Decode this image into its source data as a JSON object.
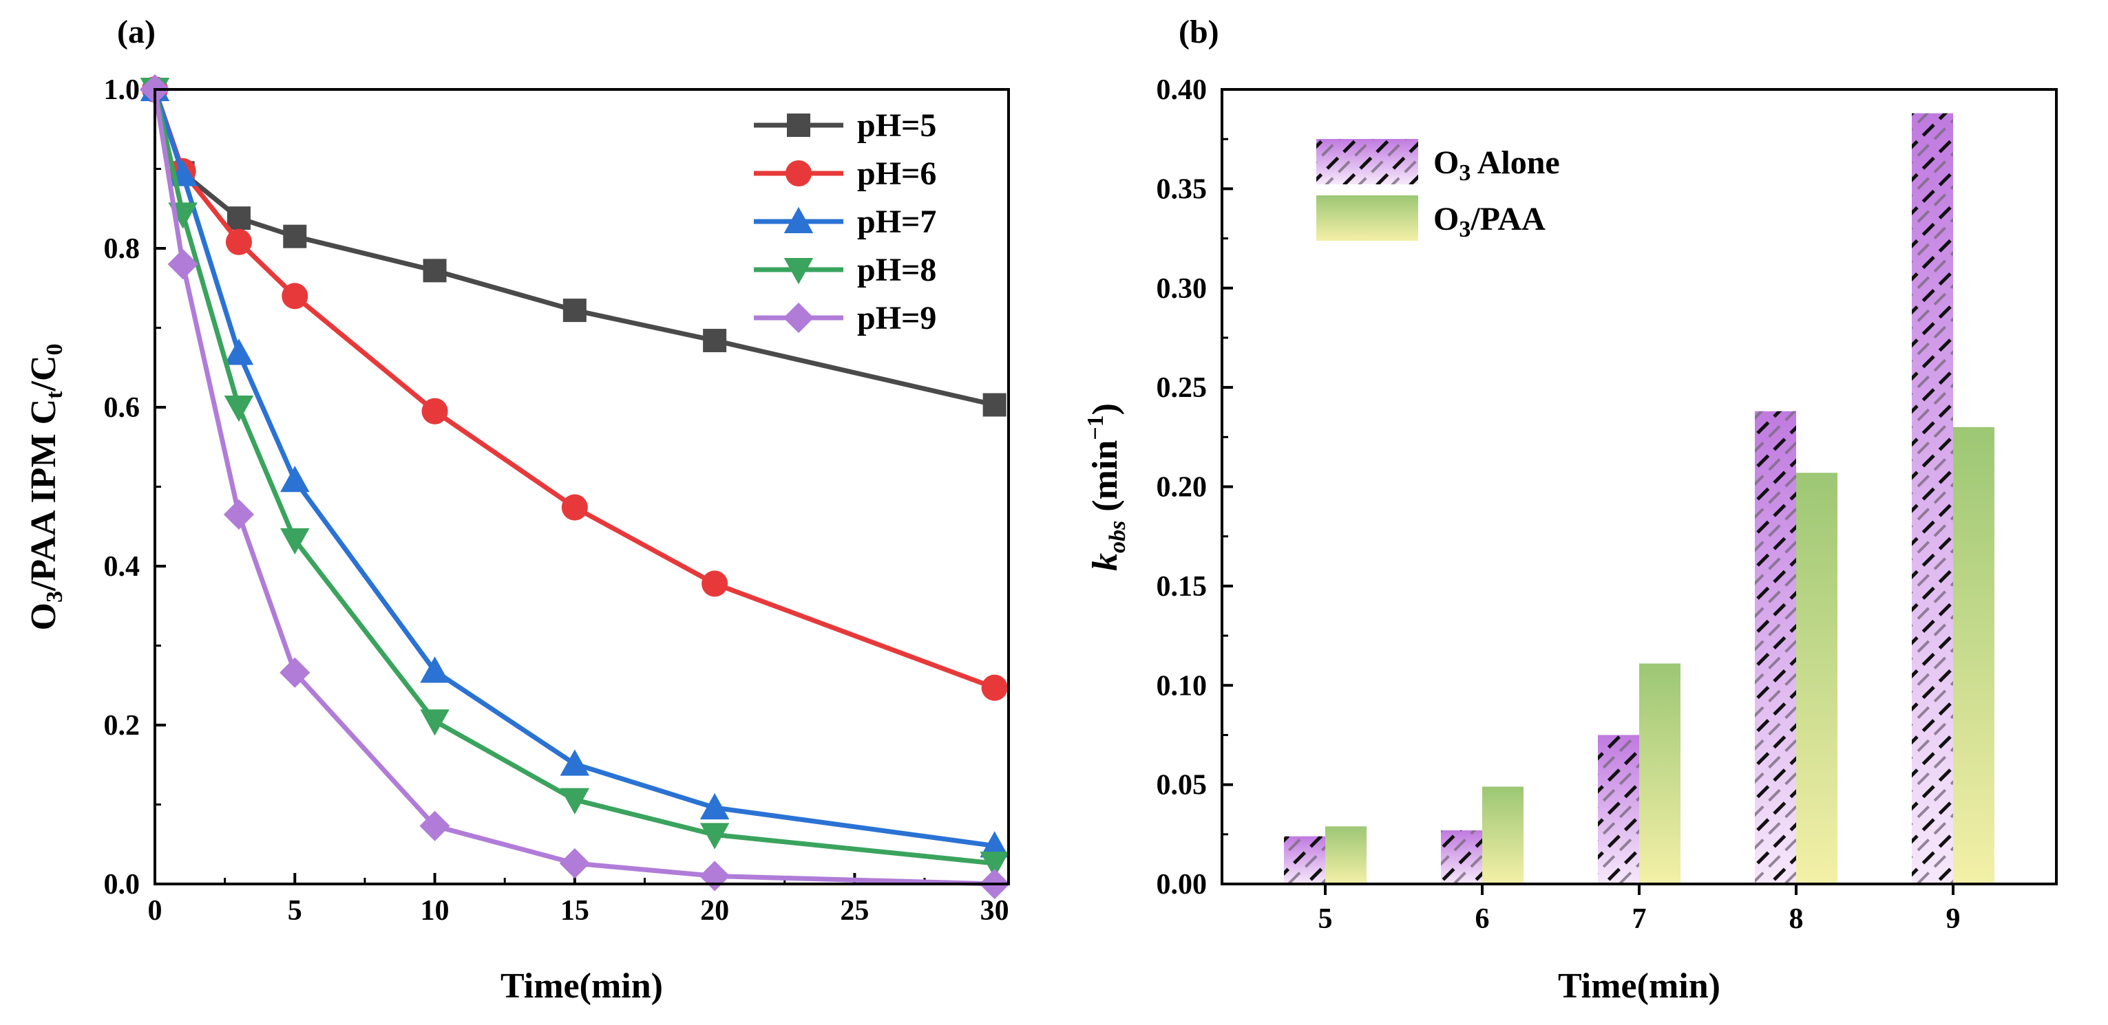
{
  "chart_data": [
    {
      "type": "line",
      "panel_label": "(a)",
      "xlabel": "Time(min)",
      "ylabel": {
        "prefix": "O",
        "sub1": "3",
        "mid": "/PAA   IPM C",
        "sub2": "t",
        "slash": "/C",
        "sub3": "0"
      },
      "xlim": [
        0,
        30.5
      ],
      "ylim": [
        0,
        1.0
      ],
      "x_ticks": [
        0,
        5,
        10,
        15,
        20,
        25,
        30
      ],
      "x_tick_labels": [
        "0",
        "5",
        "10",
        "15",
        "20",
        "25",
        "30"
      ],
      "y_ticks": [
        0.0,
        0.2,
        0.4,
        0.6,
        0.8,
        1.0
      ],
      "y_tick_labels": [
        "0.0",
        "0.2",
        "0.4",
        "0.6",
        "0.8",
        "1.0"
      ],
      "x": [
        0,
        1,
        3,
        5,
        10,
        15,
        20,
        30
      ],
      "legend_position": "top-right",
      "series": [
        {
          "name": "pH=5",
          "marker": "square",
          "color": "#4a4a4a",
          "values": [
            1.0,
            0.895,
            0.838,
            0.815,
            0.772,
            0.722,
            0.684,
            0.603
          ]
        },
        {
          "name": "pH=6",
          "marker": "circle",
          "color": "#e8393a",
          "values": [
            1.0,
            0.897,
            0.808,
            0.74,
            0.595,
            0.474,
            0.378,
            0.247
          ]
        },
        {
          "name": "pH=7",
          "marker": "triangle-up",
          "color": "#2a72d4",
          "values": [
            1.0,
            0.893,
            0.668,
            0.508,
            0.268,
            0.151,
            0.096,
            0.048
          ]
        },
        {
          "name": "pH=8",
          "marker": "triangle-down",
          "color": "#3aa35d",
          "values": [
            1.0,
            0.843,
            0.6,
            0.433,
            0.205,
            0.106,
            0.062,
            0.026
          ]
        },
        {
          "name": "pH=9",
          "marker": "diamond",
          "color": "#b07cd8",
          "values": [
            1.0,
            0.78,
            0.465,
            0.266,
            0.073,
            0.026,
            0.01,
            0.0
          ]
        }
      ]
    },
    {
      "type": "bar",
      "panel_label": "(b)",
      "xlabel": "Time(min)",
      "ylabel": {
        "italic": "k",
        "sub": "obs",
        "unit": " (min",
        "sup": "−1",
        "close": ")"
      },
      "categories": [
        "5",
        "6",
        "7",
        "8",
        "9"
      ],
      "ylim": [
        0,
        0.4
      ],
      "y_ticks": [
        0.0,
        0.05,
        0.1,
        0.15,
        0.2,
        0.25,
        0.3,
        0.35,
        0.4
      ],
      "y_tick_labels": [
        "0.00",
        "0.05",
        "0.10",
        "0.15",
        "0.20",
        "0.25",
        "0.30",
        "0.35",
        "0.40"
      ],
      "legend_position": "top-left",
      "series": [
        {
          "name": "O3 Alone",
          "label_main": "O",
          "label_sub": "3",
          "label_rest": " Alone",
          "color": "#c98ae6",
          "pattern": "hatched",
          "values": [
            0.024,
            0.027,
            0.075,
            0.238,
            0.388
          ]
        },
        {
          "name": "O3/PAA",
          "label_main": "O",
          "label_sub": "3",
          "label_rest": "/PAA",
          "color": "#a8cc78",
          "pattern": "gradient",
          "values": [
            0.029,
            0.049,
            0.111,
            0.207,
            0.23
          ]
        }
      ]
    }
  ]
}
